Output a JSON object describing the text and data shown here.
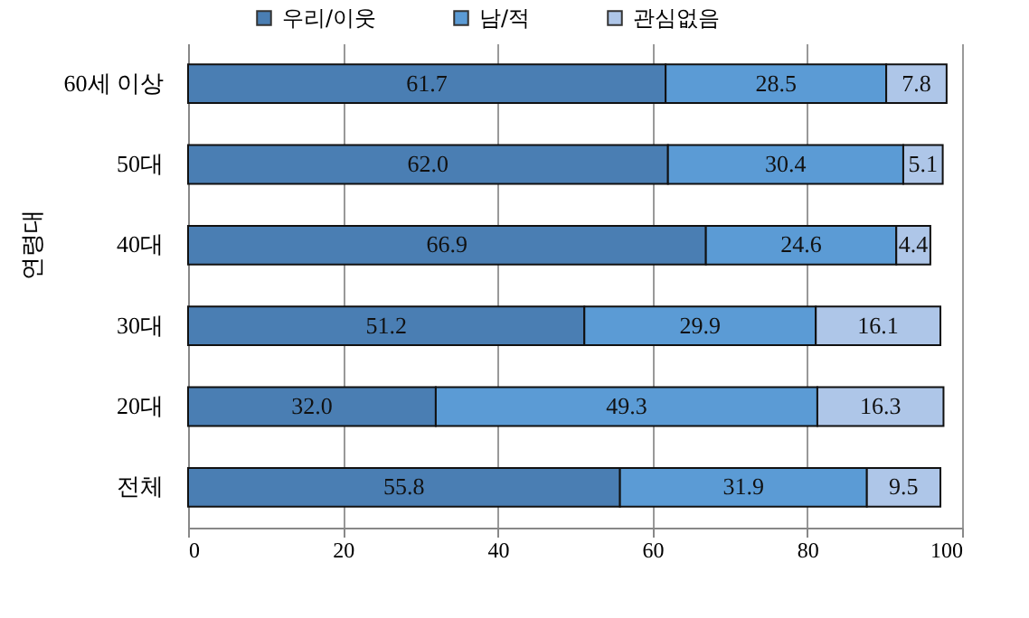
{
  "chart_data": {
    "type": "bar",
    "orientation": "horizontal",
    "stacked": true,
    "categories": [
      "60세 이상",
      "50대",
      "40대",
      "30대",
      "20대",
      "전체"
    ],
    "series": [
      {
        "name": "우리/이웃",
        "color": "#4a7eb3",
        "values": [
          61.7,
          62.0,
          66.9,
          51.2,
          32.0,
          55.8
        ],
        "value_labels": [
          "61.7",
          "62.0",
          "66.9",
          "51.2",
          "32.0",
          "55.8"
        ]
      },
      {
        "name": "남/적",
        "color": "#5b9bd5",
        "values": [
          28.5,
          30.4,
          24.6,
          29.9,
          49.3,
          31.9
        ],
        "value_labels": [
          "28.5",
          "30.4",
          "24.6",
          "29.9",
          "49.3",
          "31.9"
        ]
      },
      {
        "name": "관심없음",
        "color": "#aec6e8",
        "values": [
          7.8,
          5.1,
          4.4,
          16.1,
          16.3,
          9.5
        ],
        "value_labels": [
          "7.8",
          "5.1",
          "4.4",
          "16.1",
          "16.3",
          "9.5"
        ]
      }
    ],
    "xlim": [
      0,
      100
    ],
    "xticks": [
      0,
      20,
      40,
      60,
      80,
      100
    ],
    "annotations": [
      "연령대"
    ],
    "grid": "x",
    "legend": "top"
  }
}
